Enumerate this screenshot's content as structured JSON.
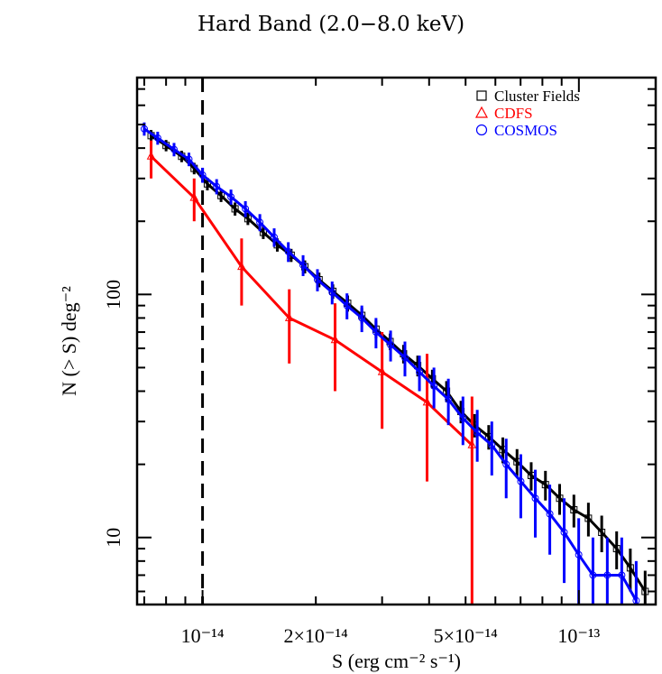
{
  "chart_data": {
    "type": "line",
    "title": "Hard Band (2.0−8.0 keV)",
    "xlabel": "S (erg cm⁻² s⁻¹)",
    "ylabel": "N (> S) deg⁻²",
    "xscale": "log",
    "yscale": "log",
    "xlim": [
      6.7e-15,
      1.6e-13
    ],
    "ylim": [
      5.3,
      780
    ],
    "x_ticks": [
      {
        "value": 1e-14,
        "label": "10⁻¹⁴"
      },
      {
        "value": 2e-14,
        "label": "2×10⁻¹⁴"
      },
      {
        "value": 5e-14,
        "label": "5×10⁻¹⁴"
      },
      {
        "value": 1e-13,
        "label": "10⁻¹³"
      }
    ],
    "y_ticks": [
      {
        "value": 10,
        "label": "10"
      },
      {
        "value": 100,
        "label": "100"
      }
    ],
    "vline": {
      "x": 1e-14,
      "style": "dashed",
      "color": "#000000"
    },
    "legend_position": "top-right",
    "series": [
      {
        "name": "Cluster Fields",
        "color": "#000000",
        "marker": "square",
        "x": [
          7.3e-15,
          8e-15,
          8.8e-15,
          9.5e-15,
          1.03e-14,
          1.12e-14,
          1.22e-14,
          1.32e-14,
          1.45e-14,
          1.58e-14,
          1.72e-14,
          1.87e-14,
          2.04e-14,
          2.22e-14,
          2.43e-14,
          2.65e-14,
          2.89e-14,
          3.15e-14,
          3.42e-14,
          3.73e-14,
          4.08e-14,
          4.45e-14,
          4.86e-14,
          5.28e-14,
          5.76e-14,
          6.28e-14,
          6.85e-14,
          7.47e-14,
          8.15e-14,
          8.89e-14,
          9.7e-14,
          1.06e-13,
          1.15e-13,
          1.26e-13,
          1.37e-13,
          1.5e-13
        ],
        "y": [
          450,
          410,
          370,
          330,
          285,
          255,
          225,
          205,
          180,
          160,
          145,
          130,
          115,
          103,
          92,
          82,
          72,
          64,
          57,
          51,
          45,
          40,
          33,
          29,
          26,
          23,
          20.5,
          18,
          16.5,
          14.5,
          13,
          12,
          10.5,
          9,
          7.5,
          6
        ],
        "yerr": [
          25,
          22,
          20,
          18,
          17,
          15,
          14,
          12,
          11,
          10,
          9,
          8,
          8,
          7,
          7,
          6,
          6,
          5,
          5,
          5,
          4,
          4,
          3.5,
          3.2,
          3,
          2.8,
          2.6,
          2.4,
          2.3,
          2.1,
          2,
          1.9,
          1.8,
          1.6,
          1.5,
          1.3
        ]
      },
      {
        "name": "CDFS",
        "color": "#ff0000",
        "marker": "triangle",
        "x": [
          7.3e-15,
          9.5e-15,
          1.27e-14,
          1.7e-14,
          2.25e-14,
          3e-14,
          3.95e-14,
          5.2e-14
        ],
        "y": [
          370,
          250,
          130,
          80,
          65,
          48,
          36,
          24
        ],
        "ylo": [
          300,
          200,
          90,
          52,
          40,
          28,
          17,
          4
        ],
        "yhi": [
          430,
          300,
          170,
          105,
          92,
          70,
          57,
          38
        ]
      },
      {
        "name": "COSMOS",
        "color": "#0000ff",
        "marker": "circle",
        "x": [
          7e-15,
          7.6e-15,
          8.4e-15,
          9.2e-15,
          1e-14,
          1.09e-14,
          1.19e-14,
          1.3e-14,
          1.42e-14,
          1.55e-14,
          1.69e-14,
          1.85e-14,
          2.02e-14,
          2.21e-14,
          2.42e-14,
          2.65e-14,
          2.89e-14,
          3.16e-14,
          3.45e-14,
          3.77e-14,
          4.12e-14,
          4.5e-14,
          4.92e-14,
          5.37e-14,
          5.87e-14,
          6.41e-14,
          7.01e-14,
          7.66e-14,
          8.37e-14,
          9.14e-14,
          9.99e-14,
          1.09e-13,
          1.19e-13,
          1.3e-13,
          1.42e-13
        ],
        "y": [
          480,
          440,
          395,
          360,
          310,
          278,
          252,
          225,
          198,
          172,
          150,
          132,
          115,
          102,
          90,
          80,
          70,
          62,
          55,
          48,
          42,
          37,
          31,
          27,
          24,
          20,
          17,
          14.5,
          12.5,
          10.5,
          8.5,
          7,
          7,
          7,
          5.5
        ],
        "yerr": [
          30,
          27,
          25,
          23,
          22,
          20,
          18,
          17,
          16,
          15,
          14,
          13,
          12,
          11,
          11,
          10,
          10,
          9,
          9,
          8,
          8,
          8,
          7,
          6.5,
          6,
          5.5,
          5,
          4.5,
          4,
          4,
          3.5,
          3,
          3,
          3,
          2.5
        ]
      }
    ]
  }
}
